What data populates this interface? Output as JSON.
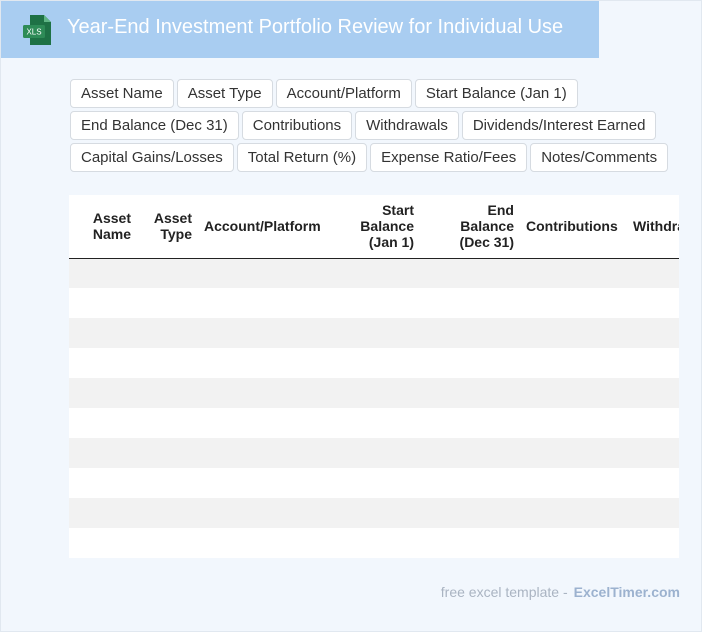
{
  "app": {
    "title": "Year-End Investment Portfolio Review for Individual Use",
    "icon_label": "XLS",
    "icon_color": "#1e7145",
    "header_color": "#a9cdf1"
  },
  "fields": {
    "rows": [
      [
        "Asset Name",
        "Asset Type",
        "Account/Platform",
        "Start Balance (Jan 1)"
      ],
      [
        "End Balance (Dec 31)",
        "Contributions",
        "Withdrawals",
        "Dividends/Interest Earned"
      ],
      [
        "Capital Gains/Losses",
        "Total Return (%)",
        "Expense Ratio/Fees",
        "Notes/Comments"
      ]
    ]
  },
  "table": {
    "headers": [
      {
        "line1": "Asset",
        "line2": "Name",
        "line3": ""
      },
      {
        "line1": "Asset",
        "line2": "Type",
        "line3": ""
      },
      {
        "line1": "Account/Platform",
        "line2": "",
        "line3": ""
      },
      {
        "line1": "Start",
        "line2": "Balance",
        "line3": "(Jan 1)"
      },
      {
        "line1": "End",
        "line2": "Balance",
        "line3": "(Dec 31)"
      },
      {
        "line1": "Contributions",
        "line2": "",
        "line3": ""
      },
      {
        "line1": "Withdrawals",
        "line2": "",
        "line3": ""
      }
    ],
    "empty_row_count": 10
  },
  "footer": {
    "prefix": "free excel template -",
    "brand": "ExcelTimer.com"
  }
}
